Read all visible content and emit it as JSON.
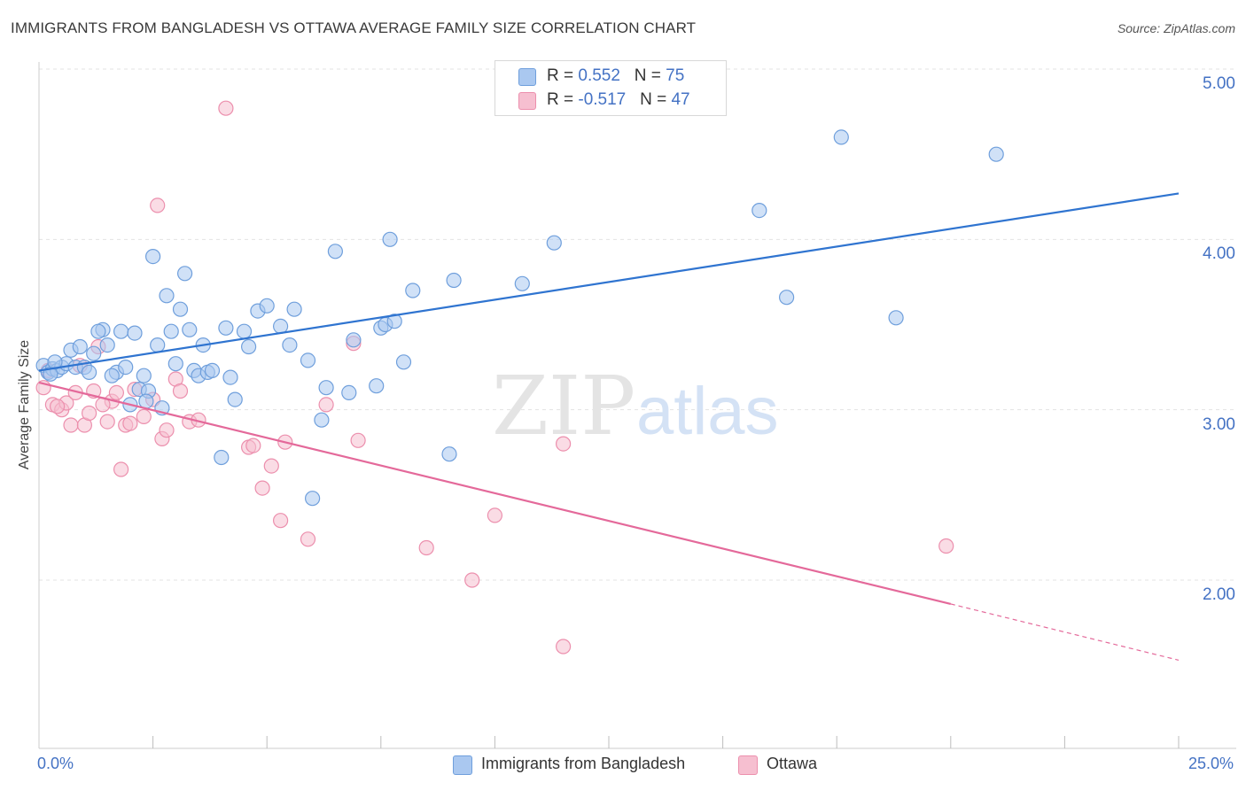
{
  "title": "IMMIGRANTS FROM BANGLADESH VS OTTAWA AVERAGE FAMILY SIZE CORRELATION CHART",
  "source": "Source: ZipAtlas.com",
  "watermark": {
    "zip": "ZIP",
    "atlas": "atlas"
  },
  "colors": {
    "blue_fill": "#aac8f0",
    "blue_stroke": "#6f9fdc",
    "blue_line": "#2f74d0",
    "pink_fill": "#f6bfd0",
    "pink_stroke": "#ec8fad",
    "pink_line": "#e4699a",
    "grid": "#e3e3e3",
    "tick_text": "#4472c4"
  },
  "legend": {
    "rows": [
      {
        "r_label": "R = ",
        "r_value": "0.552",
        "n_label": "N = ",
        "n_value": "75"
      },
      {
        "r_label": "R = ",
        "r_value": "-0.517",
        "n_label": "N = ",
        "n_value": "47"
      }
    ]
  },
  "chart_data": {
    "type": "scatter",
    "title": "IMMIGRANTS FROM BANGLADESH VS OTTAWA AVERAGE FAMILY SIZE CORRELATION CHART",
    "xlabel": "",
    "ylabel": "Average Family Size",
    "xlim": [
      0,
      25
    ],
    "ylim": [
      1.1,
      5.1
    ],
    "x_tick_labels": [
      "0.0%",
      "25.0%"
    ],
    "y_ticks": [
      2.0,
      3.0,
      4.0,
      5.0
    ],
    "y_tick_labels": [
      "2.00",
      "3.00",
      "4.00",
      "5.00"
    ],
    "grid": "horizontal dashed",
    "legend_position": "top-center",
    "series": [
      {
        "name": "Immigrants from Bangladesh",
        "color": "#aac8f0",
        "r": 0.552,
        "n": 75,
        "trend": {
          "x": [
            0,
            25
          ],
          "y": [
            3.23,
            4.27
          ],
          "style": "solid"
        },
        "points": [
          [
            0.1,
            3.26
          ],
          [
            0.2,
            3.22
          ],
          [
            0.3,
            3.24
          ],
          [
            0.4,
            3.23
          ],
          [
            0.5,
            3.25
          ],
          [
            0.6,
            3.27
          ],
          [
            0.8,
            3.25
          ],
          [
            0.7,
            3.35
          ],
          [
            0.9,
            3.37
          ],
          [
            1.0,
            3.25
          ],
          [
            1.1,
            3.22
          ],
          [
            1.2,
            3.33
          ],
          [
            1.4,
            3.47
          ],
          [
            1.5,
            3.38
          ],
          [
            1.3,
            3.46
          ],
          [
            1.7,
            3.22
          ],
          [
            1.8,
            3.46
          ],
          [
            1.9,
            3.25
          ],
          [
            2.0,
            3.03
          ],
          [
            2.1,
            3.45
          ],
          [
            2.2,
            3.12
          ],
          [
            2.3,
            3.2
          ],
          [
            2.4,
            3.11
          ],
          [
            2.5,
            3.9
          ],
          [
            2.6,
            3.38
          ],
          [
            2.7,
            3.01
          ],
          [
            2.8,
            3.67
          ],
          [
            2.9,
            3.46
          ],
          [
            3.0,
            3.27
          ],
          [
            3.1,
            3.59
          ],
          [
            3.2,
            3.8
          ],
          [
            3.3,
            3.47
          ],
          [
            3.4,
            3.23
          ],
          [
            3.5,
            3.2
          ],
          [
            3.6,
            3.38
          ],
          [
            3.7,
            3.22
          ],
          [
            3.8,
            3.23
          ],
          [
            4.0,
            2.72
          ],
          [
            4.1,
            3.48
          ],
          [
            4.2,
            3.19
          ],
          [
            4.3,
            3.06
          ],
          [
            4.5,
            3.46
          ],
          [
            4.6,
            3.37
          ],
          [
            4.8,
            3.58
          ],
          [
            5.0,
            3.61
          ],
          [
            5.3,
            3.49
          ],
          [
            5.5,
            3.38
          ],
          [
            5.6,
            3.59
          ],
          [
            5.9,
            3.29
          ],
          [
            6.0,
            2.48
          ],
          [
            6.2,
            2.94
          ],
          [
            6.3,
            3.13
          ],
          [
            6.5,
            3.93
          ],
          [
            6.8,
            3.1
          ],
          [
            6.9,
            3.41
          ],
          [
            7.4,
            3.14
          ],
          [
            7.5,
            3.48
          ],
          [
            7.6,
            3.5
          ],
          [
            7.7,
            4.0
          ],
          [
            7.8,
            3.52
          ],
          [
            8.0,
            3.28
          ],
          [
            8.2,
            3.7
          ],
          [
            9.0,
            2.74
          ],
          [
            9.1,
            3.76
          ],
          [
            10.6,
            3.74
          ],
          [
            11.3,
            3.98
          ],
          [
            15.8,
            4.17
          ],
          [
            16.4,
            3.66
          ],
          [
            17.6,
            4.6
          ],
          [
            18.8,
            3.54
          ],
          [
            21.0,
            4.5
          ],
          [
            0.25,
            3.21
          ],
          [
            0.35,
            3.28
          ],
          [
            1.6,
            3.2
          ],
          [
            2.35,
            3.05
          ]
        ]
      },
      {
        "name": "Ottawa",
        "color": "#f6bfd0",
        "r": -0.517,
        "n": 47,
        "trend": {
          "x": [
            0,
            20
          ],
          "y": [
            3.16,
            1.86
          ],
          "style": "solid",
          "dashed_extension": {
            "x": [
              20,
              25
            ],
            "y": [
              1.86,
              1.53
            ]
          }
        },
        "points": [
          [
            0.1,
            3.13
          ],
          [
            0.2,
            3.23
          ],
          [
            0.3,
            3.03
          ],
          [
            0.5,
            3.0
          ],
          [
            0.6,
            3.04
          ],
          [
            0.7,
            2.91
          ],
          [
            0.8,
            3.1
          ],
          [
            0.9,
            3.26
          ],
          [
            1.0,
            2.91
          ],
          [
            1.1,
            2.98
          ],
          [
            1.2,
            3.11
          ],
          [
            1.3,
            3.37
          ],
          [
            1.5,
            2.93
          ],
          [
            1.6,
            3.05
          ],
          [
            1.7,
            3.1
          ],
          [
            1.8,
            2.65
          ],
          [
            1.9,
            2.91
          ],
          [
            2.0,
            2.92
          ],
          [
            2.1,
            3.12
          ],
          [
            2.3,
            2.96
          ],
          [
            2.5,
            3.06
          ],
          [
            2.6,
            4.2
          ],
          [
            2.7,
            2.83
          ],
          [
            2.8,
            2.88
          ],
          [
            3.0,
            3.18
          ],
          [
            3.1,
            3.11
          ],
          [
            3.3,
            2.93
          ],
          [
            3.5,
            2.94
          ],
          [
            4.1,
            4.77
          ],
          [
            4.6,
            2.78
          ],
          [
            4.7,
            2.79
          ],
          [
            4.9,
            2.54
          ],
          [
            5.1,
            2.67
          ],
          [
            5.3,
            2.35
          ],
          [
            5.4,
            2.81
          ],
          [
            5.9,
            2.24
          ],
          [
            6.3,
            3.03
          ],
          [
            6.9,
            3.39
          ],
          [
            7.0,
            2.82
          ],
          [
            8.5,
            2.19
          ],
          [
            9.5,
            2.0
          ],
          [
            10.0,
            2.38
          ],
          [
            11.5,
            1.61
          ],
          [
            11.5,
            2.8
          ],
          [
            19.9,
            2.2
          ],
          [
            0.4,
            3.02
          ],
          [
            1.4,
            3.03
          ]
        ]
      }
    ]
  },
  "bottom_legend": [
    "Immigrants from Bangladesh",
    "Ottawa"
  ]
}
